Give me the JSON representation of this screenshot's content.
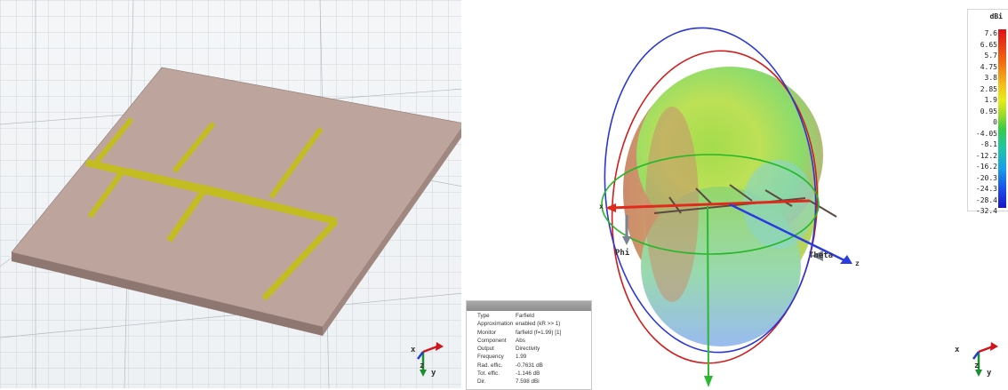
{
  "far_field": {
    "axis_labels": {
      "x": "x",
      "z": "z",
      "phi": "Phi",
      "theta": "Theta"
    }
  },
  "triad_left": {
    "x": "x",
    "y": "y",
    "z": "z"
  },
  "triad_right": {
    "x": "x",
    "y": "y",
    "z": "z"
  },
  "color_scale": {
    "unit": "dBi",
    "ticks": [
      "7.6",
      "6.65",
      "5.7",
      "4.75",
      "3.8",
      "2.85",
      "1.9",
      "0.95",
      "0",
      "-4.05",
      "-8.1",
      "-12.2",
      "-16.2",
      "-20.3",
      "-24.3",
      "-28.4",
      "-32.4"
    ],
    "colors": {
      "max": "#e0121a",
      "mid": "#37c94b",
      "min": "#1814c8"
    }
  },
  "info": {
    "rows": [
      {
        "key": "Type",
        "value": "Farfield"
      },
      {
        "key": "Approximation",
        "value": "enabled (kR >> 1)"
      },
      {
        "key": "Monitor",
        "value": "farfield (f=1.99) [1]"
      },
      {
        "key": "Component",
        "value": "Abs"
      },
      {
        "key": "Output",
        "value": "Directivity"
      },
      {
        "key": "Frequency",
        "value": "1.99"
      },
      {
        "key": "Rad. effic.",
        "value": "-0.7631 dB"
      },
      {
        "key": "Tot. effic.",
        "value": "-1.146 dB"
      },
      {
        "key": "Dir.",
        "value": "7.598 dBi"
      }
    ]
  },
  "colors": {
    "substrate": "#b9a29b",
    "trace": "#c7c22a",
    "grid": "#c9ced4"
  }
}
